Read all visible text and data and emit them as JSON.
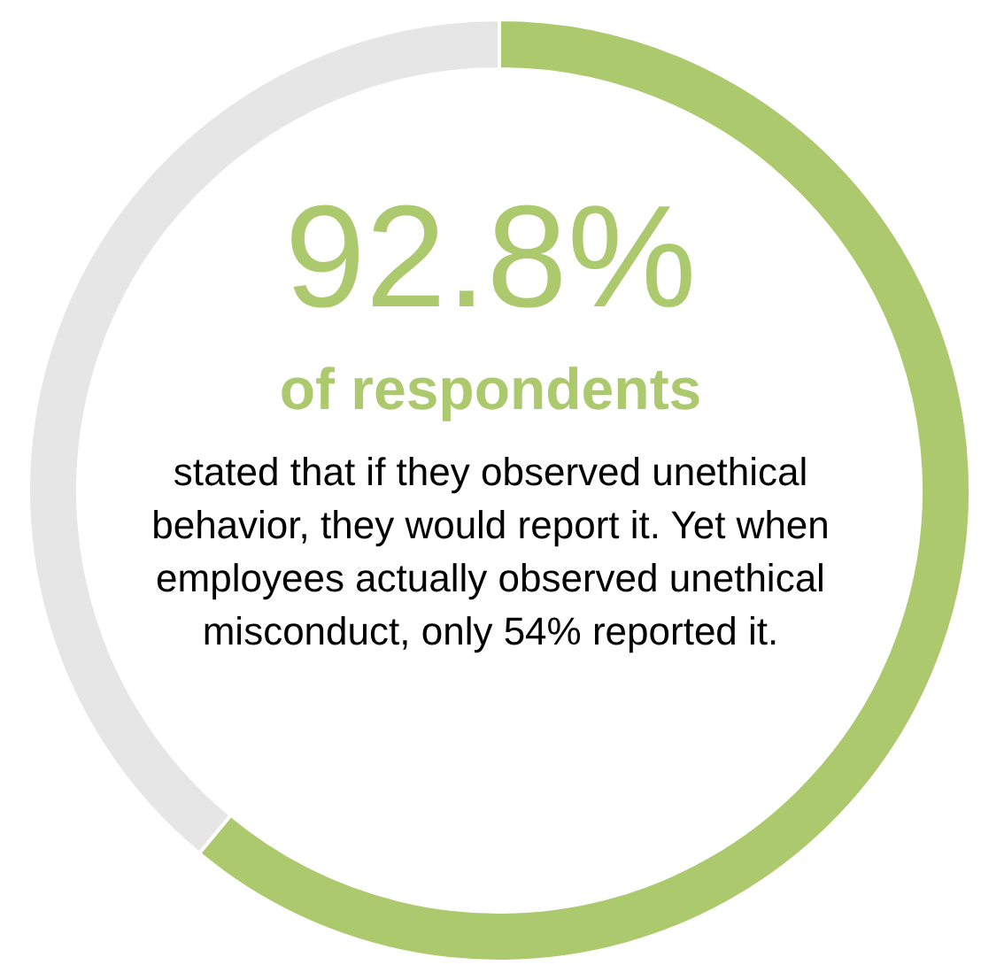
{
  "chart_data": {
    "type": "donut",
    "title": "92.8%",
    "subtitle": "of respondents",
    "annotations": [
      "stated that if they observed unethical behavior, they would report it. Yet when employees actually observed unethical misconduct, only 54% reported it."
    ],
    "categories": [
      null,
      null
    ],
    "values": [
      61,
      39
    ],
    "colors": [
      "#acc96e",
      "#e6e6e6"
    ]
  }
}
